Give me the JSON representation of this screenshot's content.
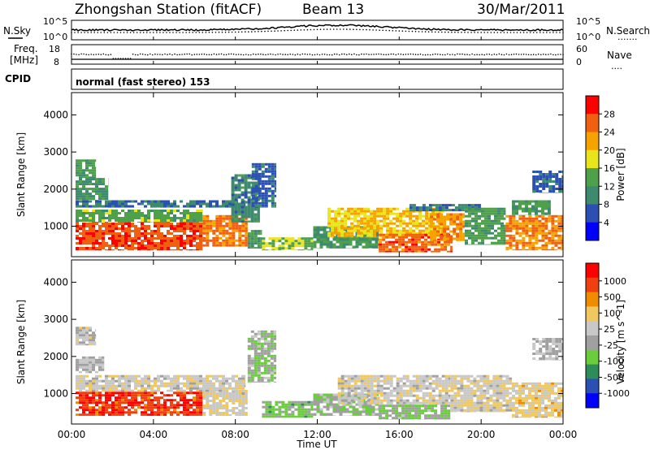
{
  "header": {
    "station": "Zhongshan Station (fitACF)",
    "beam": "Beam 13",
    "date": "30/Mar/2011"
  },
  "nsky_panel": {
    "left_label": "N.Sky",
    "right_label": "N.Search",
    "right_legend_symbol": "·······",
    "left_ticks": [
      "10^5",
      "10^0"
    ],
    "right_ticks": [
      "10^5",
      "10^0"
    ]
  },
  "freq_panel": {
    "left_label_1": "Freq.",
    "left_label_2": "[MHz]",
    "right_label": "Nave",
    "right_legend_symbol": "····",
    "left_ticks": [
      "18",
      "8"
    ],
    "right_ticks": [
      "60",
      "0"
    ]
  },
  "cpid_panel": {
    "label": "CPID",
    "mode_text": "normal (fast stereo) 153"
  },
  "x_axis": {
    "label": "Time UT",
    "ticks": [
      "00:00",
      "04:00",
      "08:00",
      "12:00",
      "16:00",
      "20:00",
      "00:00"
    ]
  },
  "colors": {
    "power": [
      "#0000ff",
      "#2b4fb3",
      "#3e8a6e",
      "#4fa04a",
      "#e9e51c",
      "#f6a200",
      "#f06010",
      "#ff0000"
    ],
    "velocity": [
      "#ff0000",
      "#f04010",
      "#f08c00",
      "#f0c860",
      "#c8c8c8",
      "#a0a0a0",
      "#6acd3c",
      "#2e8c58",
      "#2b4fb3",
      "#0000ff"
    ]
  },
  "chart_data": [
    {
      "type": "heatmap",
      "title": "",
      "xlabel": "",
      "ylabel": "Slant Range [km]",
      "y_ticks": [
        "1000",
        "2000",
        "3000",
        "4000"
      ],
      "ylim": [
        180,
        4600
      ],
      "colorbar": {
        "label": "Power [dB]",
        "ticks": [
          "4",
          "8",
          "12",
          "16",
          "20",
          "24",
          "28"
        ],
        "range": [
          0,
          32
        ]
      },
      "regions": [
        {
          "t0": 0.2,
          "t1": 6.4,
          "r0": 350,
          "r1": 1100,
          "value": 27
        },
        {
          "t0": 6.4,
          "t1": 8.6,
          "r0": 450,
          "r1": 1300,
          "value": 25
        },
        {
          "t0": 8.6,
          "t1": 9.3,
          "r0": 400,
          "r1": 900,
          "value": 12
        },
        {
          "t0": 0.2,
          "t1": 6.4,
          "r0": 1100,
          "r1": 1450,
          "value": 14
        },
        {
          "t0": 0.2,
          "t1": 8.5,
          "r0": 1500,
          "r1": 1700,
          "value": 8
        },
        {
          "t0": 0.2,
          "t1": 1.8,
          "r0": 1700,
          "r1": 2300,
          "value": 11
        },
        {
          "t0": 0.2,
          "t1": 1.2,
          "r0": 2300,
          "r1": 2800,
          "value": 13
        },
        {
          "t0": 7.8,
          "t1": 9.2,
          "r0": 1100,
          "r1": 2400,
          "value": 10
        },
        {
          "t0": 8.8,
          "t1": 10.0,
          "r0": 1500,
          "r1": 2700,
          "value": 7
        },
        {
          "t0": 9.3,
          "t1": 11.8,
          "r0": 350,
          "r1": 700,
          "value": 16
        },
        {
          "t0": 11.8,
          "t1": 15.0,
          "r0": 400,
          "r1": 1000,
          "value": 12
        },
        {
          "t0": 12.5,
          "t1": 18.2,
          "r0": 700,
          "r1": 1500,
          "value": 20
        },
        {
          "t0": 15.0,
          "t1": 18.6,
          "r0": 300,
          "r1": 800,
          "value": 26
        },
        {
          "t0": 17.5,
          "t1": 19.2,
          "r0": 600,
          "r1": 1350,
          "value": 23
        },
        {
          "t0": 16.5,
          "t1": 20.0,
          "r0": 1400,
          "r1": 1600,
          "value": 9
        },
        {
          "t0": 19.2,
          "t1": 21.2,
          "r0": 500,
          "r1": 1500,
          "value": 13
        },
        {
          "t0": 21.2,
          "t1": 24.0,
          "r0": 350,
          "r1": 1300,
          "value": 24
        },
        {
          "t0": 21.5,
          "t1": 23.4,
          "r0": 1300,
          "r1": 1700,
          "value": 13
        },
        {
          "t0": 22.5,
          "t1": 24.0,
          "r0": 1900,
          "r1": 2500,
          "value": 7
        }
      ]
    },
    {
      "type": "heatmap",
      "title": "",
      "xlabel": "Time UT",
      "ylabel": "Slant Range [km]",
      "y_ticks": [
        "1000",
        "2000",
        "3000",
        "4000"
      ],
      "ylim": [
        180,
        4600
      ],
      "colorbar": {
        "label": "Velocity [m s^-1]",
        "ticks": [
          "1000",
          "500",
          "100",
          "25",
          "-25",
          "-100",
          "-500",
          "-1000"
        ],
        "range": [
          -1200,
          1200
        ]
      },
      "regions": [
        {
          "t0": 0.2,
          "t1": 6.4,
          "r0": 400,
          "r1": 1050,
          "value": 900
        },
        {
          "t0": 6.4,
          "t1": 8.6,
          "r0": 400,
          "r1": 1100,
          "value": 200
        },
        {
          "t0": 0.2,
          "t1": 8.5,
          "r0": 1050,
          "r1": 1500,
          "value": 150
        },
        {
          "t0": 0.2,
          "t1": 1.6,
          "r0": 1550,
          "r1": 2000,
          "value": 0
        },
        {
          "t0": 0.2,
          "t1": 1.2,
          "r0": 2300,
          "r1": 2800,
          "value": 60
        },
        {
          "t0": 8.6,
          "t1": 10.0,
          "r0": 1300,
          "r1": 2700,
          "value": -150
        },
        {
          "t0": 9.3,
          "t1": 11.8,
          "r0": 350,
          "r1": 800,
          "value": -300
        },
        {
          "t0": 11.8,
          "t1": 15.0,
          "r0": 400,
          "r1": 1000,
          "value": -150
        },
        {
          "t0": 13.0,
          "t1": 18.5,
          "r0": 700,
          "r1": 1500,
          "value": 150
        },
        {
          "t0": 15.0,
          "t1": 18.5,
          "r0": 300,
          "r1": 700,
          "value": -200
        },
        {
          "t0": 18.5,
          "t1": 21.5,
          "r0": 500,
          "r1": 1500,
          "value": 150
        },
        {
          "t0": 21.5,
          "t1": 24.0,
          "r0": 350,
          "r1": 1300,
          "value": 300
        },
        {
          "t0": 22.5,
          "t1": 24.0,
          "r0": 1900,
          "r1": 2500,
          "value": 0
        }
      ]
    }
  ]
}
